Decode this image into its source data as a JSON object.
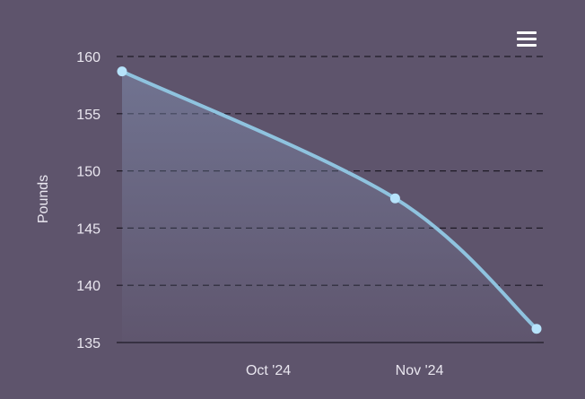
{
  "colors": {
    "background": "#5e546c",
    "line": "#8fc3df",
    "marker": "#b6e3fb",
    "grid": "#1e1a26",
    "text": "#e9e6ef"
  },
  "menu": {
    "icon": "hamburger-menu-icon"
  },
  "chart_data": {
    "type": "area",
    "ylabel": "Pounds",
    "xlabel": "",
    "ylim": [
      135,
      160
    ],
    "yticks": [
      135,
      140,
      145,
      150,
      155,
      160
    ],
    "xlim": [
      "2024-09-01",
      "2024-11-25"
    ],
    "xticks": [
      {
        "label": "Oct '24",
        "date": "2024-10-01"
      },
      {
        "label": "Nov '24",
        "date": "2024-11-01"
      }
    ],
    "grid": true,
    "gridStyle": "dashed",
    "series": [
      {
        "points": [
          {
            "date": "2024-09-01",
            "value": 158.7
          },
          {
            "date": "2024-10-27",
            "value": 147.6
          },
          {
            "date": "2024-11-25",
            "value": 136.2
          }
        ]
      }
    ]
  }
}
